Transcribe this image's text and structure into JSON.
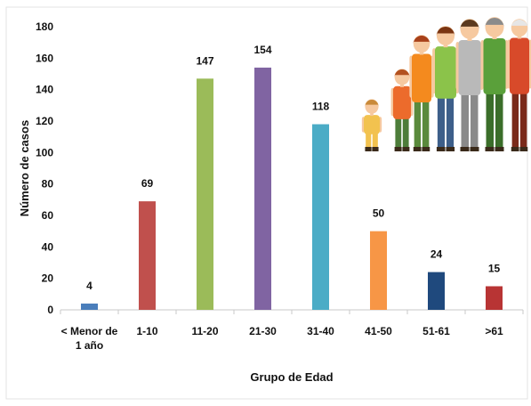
{
  "chart_data": {
    "type": "bar",
    "xlabel": "Grupo de Edad",
    "ylabel": "Número de casos",
    "ylim": [
      0,
      180
    ],
    "yticks": [
      0,
      20,
      40,
      60,
      80,
      100,
      120,
      140,
      160,
      180
    ],
    "grid": false,
    "legend": "none",
    "categories": [
      {
        "label": [
          "< Menor de",
          "1 año"
        ],
        "value": 4,
        "color": "#4a7ebb"
      },
      {
        "label": [
          "1-10"
        ],
        "value": 69,
        "color": "#c0504d"
      },
      {
        "label": [
          "11-20"
        ],
        "value": 147,
        "color": "#9bbb59"
      },
      {
        "label": [
          "21-30"
        ],
        "value": 154,
        "color": "#8064a2"
      },
      {
        "label": [
          "31-40"
        ],
        "value": 118,
        "color": "#4bacc6"
      },
      {
        "label": [
          "41-50"
        ],
        "value": 50,
        "color": "#f79646"
      },
      {
        "label": [
          "51-61"
        ],
        "value": 24,
        "color": "#1f497d"
      },
      {
        "label": [
          ">61"
        ],
        "value": 15,
        "color": "#b83434"
      }
    ]
  },
  "illustration": {
    "name": "family-generations-illustration",
    "figures": [
      {
        "name": "baby-figure",
        "shirt": "#f2c24f",
        "pants": "#f2c24f",
        "hair": "#c98a3a"
      },
      {
        "name": "child-figure",
        "shirt": "#ec6b2c",
        "pants": "#4d7d3a",
        "hair": "#b3511f"
      },
      {
        "name": "teen-figure",
        "shirt": "#f48a1e",
        "pants": "#5a8a3c",
        "hair": "#a8411a"
      },
      {
        "name": "young-adult-figure",
        "shirt": "#8bc34a",
        "pants": "#3d5f8a",
        "hair": "#7a3512"
      },
      {
        "name": "adult-figure",
        "shirt": "#b9b9b9",
        "pants": "#8a8a8a",
        "hair": "#5b3a1f"
      },
      {
        "name": "middle-age-figure",
        "shirt": "#5aa03a",
        "pants": "#3b6e2a",
        "hair": "#8b8b8b"
      },
      {
        "name": "elder-figure",
        "shirt": "#d84a2a",
        "pants": "#7a2a1a",
        "hair": "#e6e6e6"
      }
    ]
  }
}
